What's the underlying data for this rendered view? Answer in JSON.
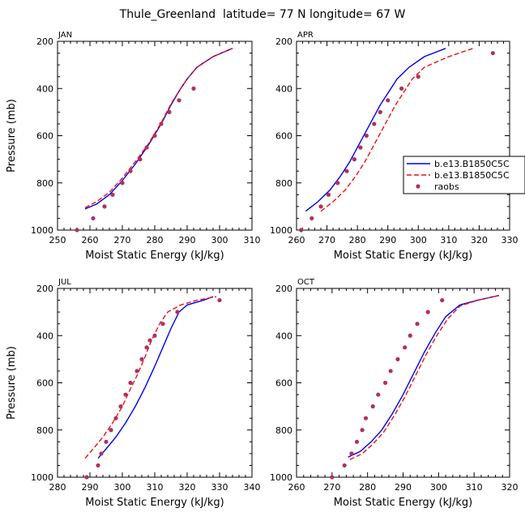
{
  "figure_title": "Thule_Greenland  latitude= 77 N longitude= 67 W",
  "legend": {
    "entries": [
      {
        "label": "b.e13.B1850C5C",
        "style": "solid",
        "color": "#0000ee"
      },
      {
        "label": "b.e13.B1850C5C",
        "style": "dashed",
        "color": "#ee1111"
      },
      {
        "label": "raobs",
        "style": "marker",
        "color": "#b03060"
      }
    ]
  },
  "chart_data": [
    {
      "type": "line",
      "title": "JAN",
      "xlabel": "Moist Static Energy (kJ/kg)",
      "ylabel": "Pressure (mb)",
      "xlim": [
        250,
        310
      ],
      "ylim": [
        200,
        1000
      ],
      "xticks": [
        250,
        260,
        270,
        280,
        290,
        300,
        310
      ],
      "yticks": [
        200,
        400,
        600,
        800,
        1000
      ],
      "series": [
        {
          "name": "b.e13.B1850C5C",
          "style": "solid",
          "color": "#0000ee",
          "x": [
            258.5,
            262,
            266,
            270,
            274,
            278,
            282,
            285,
            288,
            290,
            293,
            298,
            304
          ],
          "y": [
            910,
            890,
            850,
            790,
            720,
            640,
            550,
            470,
            400,
            360,
            310,
            265,
            230
          ]
        },
        {
          "name": "b.e13.B1850C5C",
          "style": "dashed",
          "color": "#ee1111",
          "x": [
            258.5,
            262,
            266,
            270,
            274,
            278,
            282,
            285,
            288,
            290,
            293,
            298,
            304
          ],
          "y": [
            905,
            880,
            840,
            780,
            710,
            635,
            545,
            465,
            400,
            360,
            310,
            265,
            230
          ]
        },
        {
          "name": "raobs",
          "style": "marker",
          "color": "#b03060",
          "x": [
            256,
            261,
            264.5,
            267,
            270,
            272.5,
            275.5,
            277.5,
            280,
            282,
            284.5,
            287.5,
            292
          ],
          "y": [
            1000,
            950,
            900,
            850,
            800,
            750,
            700,
            650,
            600,
            550,
            500,
            450,
            400
          ]
        }
      ]
    },
    {
      "type": "line",
      "title": "APR",
      "xlabel": "Moist Static Energy (kJ/kg)",
      "ylabel": "Pressure (mb)",
      "xlim": [
        260,
        330
      ],
      "ylim": [
        200,
        1000
      ],
      "xticks": [
        260,
        270,
        280,
        290,
        300,
        310,
        320,
        330
      ],
      "yticks": [
        200,
        400,
        600,
        800,
        1000
      ],
      "series": [
        {
          "name": "b.e13.B1850C5C",
          "style": "solid",
          "color": "#0000ee",
          "x": [
            263,
            267,
            271,
            274.5,
            277.5,
            280,
            282.5,
            285,
            287.5,
            290,
            293,
            297,
            302,
            309
          ],
          "y": [
            920,
            880,
            830,
            770,
            710,
            650,
            590,
            530,
            470,
            420,
            360,
            310,
            265,
            230
          ]
        },
        {
          "name": "b.e13.B1850C5C",
          "style": "dashed",
          "color": "#ee1111",
          "x": [
            268,
            272,
            276,
            279.5,
            282.5,
            285,
            287.5,
            290,
            292.5,
            295,
            298,
            302,
            310,
            318
          ],
          "y": [
            920,
            880,
            830,
            770,
            710,
            650,
            590,
            530,
            470,
            420,
            360,
            310,
            265,
            230
          ]
        },
        {
          "name": "raobs",
          "style": "marker",
          "color": "#b03060",
          "x": [
            261.5,
            265,
            268,
            270.5,
            273.5,
            276.5,
            279,
            281,
            283,
            285.5,
            287.5,
            290,
            294.5,
            300,
            324.5
          ],
          "y": [
            1000,
            950,
            900,
            850,
            800,
            750,
            700,
            650,
            600,
            550,
            500,
            450,
            400,
            350,
            250
          ]
        }
      ]
    },
    {
      "type": "line",
      "title": "JUL",
      "xlabel": "Moist Static Energy (kJ/kg)",
      "ylabel": "Pressure (mb)",
      "xlim": [
        280,
        340
      ],
      "ylim": [
        200,
        1000
      ],
      "xticks": [
        280,
        290,
        300,
        310,
        320,
        330,
        340
      ],
      "yticks": [
        200,
        400,
        600,
        800,
        1000
      ],
      "series": [
        {
          "name": "b.e13.B1850C5C",
          "style": "solid",
          "color": "#0000ee",
          "x": [
            292.5,
            295,
            298,
            301,
            304,
            307,
            310,
            312.5,
            315,
            317.5,
            320,
            325,
            328
          ],
          "y": [
            920,
            880,
            830,
            770,
            700,
            620,
            530,
            450,
            370,
            300,
            270,
            250,
            235
          ]
        },
        {
          "name": "b.e13.B1850C5C",
          "style": "dashed",
          "color": "#ee1111",
          "x": [
            288.5,
            291,
            294,
            297,
            300,
            302,
            304.5,
            307,
            309,
            311.5,
            314,
            318,
            323,
            329
          ],
          "y": [
            920,
            880,
            830,
            770,
            700,
            640,
            570,
            490,
            420,
            350,
            300,
            270,
            250,
            235
          ]
        },
        {
          "name": "raobs",
          "style": "marker",
          "color": "#b03060",
          "x": [
            289,
            292.5,
            293.5,
            295,
            296.5,
            298,
            299.5,
            301,
            302.5,
            304.5,
            306,
            307.5,
            308.5,
            310,
            312.5,
            317,
            330
          ],
          "y": [
            1000,
            950,
            900,
            850,
            800,
            750,
            700,
            650,
            600,
            550,
            500,
            450,
            420,
            400,
            350,
            300,
            250
          ]
        }
      ]
    },
    {
      "type": "line",
      "title": "OCT",
      "xlabel": "Moist Static Energy (kJ/kg)",
      "ylabel": "Pressure (mb)",
      "xlim": [
        260,
        320
      ],
      "ylim": [
        200,
        1000
      ],
      "xticks": [
        260,
        270,
        280,
        290,
        300,
        310,
        320
      ],
      "yticks": [
        200,
        400,
        600,
        800,
        1000
      ],
      "series": [
        {
          "name": "b.e13.B1850C5C",
          "style": "solid",
          "color": "#0000ee",
          "x": [
            274.5,
            278,
            281,
            284,
            287,
            290,
            293,
            296,
            299,
            302,
            306,
            311,
            317
          ],
          "y": [
            915,
            890,
            850,
            800,
            730,
            650,
            560,
            470,
            390,
            320,
            270,
            250,
            230
          ]
        },
        {
          "name": "b.e13.B1850C5C",
          "style": "dashed",
          "color": "#ee1111",
          "x": [
            275,
            278.5,
            281.5,
            284.5,
            287.5,
            290.5,
            293.5,
            296.5,
            299.5,
            302.5,
            306,
            311,
            317
          ],
          "y": [
            925,
            900,
            860,
            810,
            740,
            660,
            570,
            480,
            400,
            330,
            275,
            250,
            230
          ]
        },
        {
          "name": "raobs",
          "style": "marker",
          "color": "#b03060",
          "x": [
            270,
            273.5,
            275.5,
            277,
            278.5,
            279.5,
            281.5,
            283,
            285,
            286.5,
            288.5,
            290.5,
            292,
            294,
            297,
            301
          ],
          "y": [
            1000,
            950,
            900,
            850,
            800,
            750,
            700,
            650,
            600,
            550,
            500,
            450,
            400,
            350,
            300,
            250
          ]
        }
      ]
    }
  ]
}
